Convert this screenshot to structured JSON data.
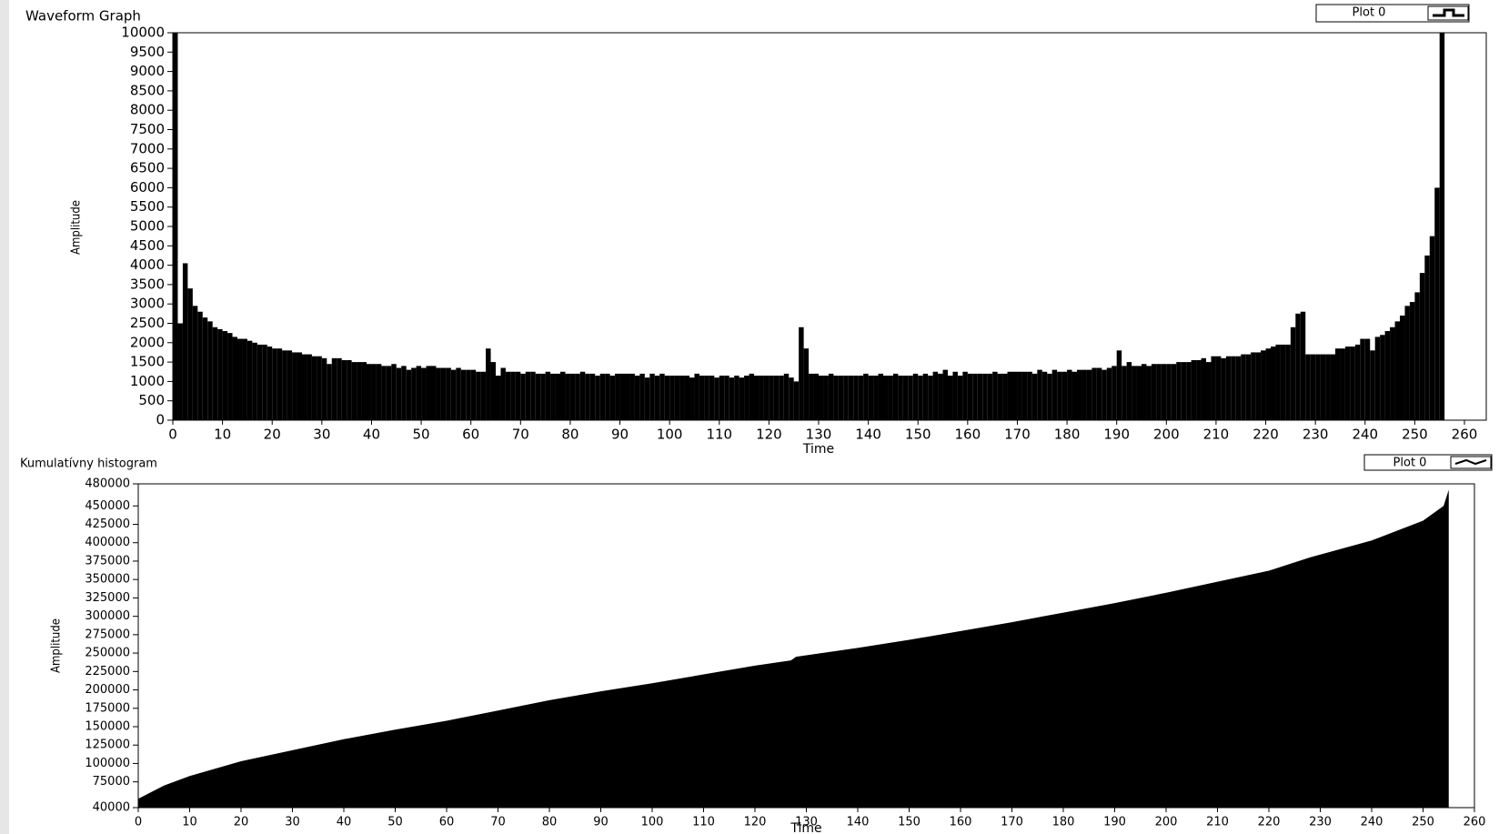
{
  "chart_data": [
    {
      "type": "bar",
      "title": "Waveform Graph",
      "x_label": "Time",
      "y_label": "Amplitude",
      "legend": "Plot 0",
      "color": "#000000",
      "x": [
        0,
        1,
        2,
        3,
        4,
        5,
        6,
        7,
        8,
        9,
        10,
        11,
        12,
        13,
        14,
        15,
        16,
        17,
        18,
        19,
        20,
        21,
        22,
        23,
        24,
        25,
        26,
        27,
        28,
        29,
        30,
        31,
        32,
        33,
        34,
        35,
        36,
        37,
        38,
        39,
        40,
        41,
        42,
        43,
        44,
        45,
        46,
        47,
        48,
        49,
        50,
        51,
        52,
        53,
        54,
        55,
        56,
        57,
        58,
        59,
        60,
        61,
        62,
        63,
        64,
        65,
        66,
        67,
        68,
        69,
        70,
        71,
        72,
        73,
        74,
        75,
        76,
        77,
        78,
        79,
        80,
        81,
        82,
        83,
        84,
        85,
        86,
        87,
        88,
        89,
        90,
        91,
        92,
        93,
        94,
        95,
        96,
        97,
        98,
        99,
        100,
        101,
        102,
        103,
        104,
        105,
        106,
        107,
        108,
        109,
        110,
        111,
        112,
        113,
        114,
        115,
        116,
        117,
        118,
        119,
        120,
        121,
        122,
        123,
        124,
        125,
        126,
        127,
        128,
        129,
        130,
        131,
        132,
        133,
        134,
        135,
        136,
        137,
        138,
        139,
        140,
        141,
        142,
        143,
        144,
        145,
        146,
        147,
        148,
        149,
        150,
        151,
        152,
        153,
        154,
        155,
        156,
        157,
        158,
        159,
        160,
        161,
        162,
        163,
        164,
        165,
        166,
        167,
        168,
        169,
        170,
        171,
        172,
        173,
        174,
        175,
        176,
        177,
        178,
        179,
        180,
        181,
        182,
        183,
        184,
        185,
        186,
        187,
        188,
        189,
        190,
        191,
        192,
        193,
        194,
        195,
        196,
        197,
        198,
        199,
        200,
        201,
        202,
        203,
        204,
        205,
        206,
        207,
        208,
        209,
        210,
        211,
        212,
        213,
        214,
        215,
        216,
        217,
        218,
        219,
        220,
        221,
        222,
        223,
        224,
        225,
        226,
        227,
        228,
        229,
        230,
        231,
        232,
        233,
        234,
        235,
        236,
        237,
        238,
        239,
        240,
        241,
        242,
        243,
        244,
        245,
        246,
        247,
        248,
        249,
        250,
        251,
        252,
        253,
        254,
        255
      ],
      "values": [
        10000,
        2500,
        4050,
        3400,
        2950,
        2800,
        2650,
        2550,
        2400,
        2350,
        2300,
        2250,
        2150,
        2100,
        2100,
        2050,
        2000,
        1950,
        1950,
        1900,
        1850,
        1850,
        1800,
        1800,
        1750,
        1750,
        1700,
        1700,
        1650,
        1650,
        1600,
        1450,
        1600,
        1600,
        1550,
        1550,
        1500,
        1500,
        1500,
        1450,
        1450,
        1450,
        1400,
        1400,
        1450,
        1350,
        1400,
        1300,
        1350,
        1400,
        1350,
        1400,
        1400,
        1350,
        1350,
        1350,
        1300,
        1350,
        1300,
        1300,
        1300,
        1250,
        1250,
        1850,
        1500,
        1150,
        1350,
        1250,
        1250,
        1250,
        1200,
        1250,
        1250,
        1200,
        1200,
        1250,
        1200,
        1200,
        1250,
        1200,
        1200,
        1200,
        1250,
        1200,
        1200,
        1150,
        1200,
        1200,
        1150,
        1200,
        1200,
        1200,
        1200,
        1150,
        1200,
        1100,
        1200,
        1150,
        1200,
        1150,
        1150,
        1150,
        1150,
        1150,
        1100,
        1200,
        1150,
        1150,
        1150,
        1100,
        1150,
        1150,
        1100,
        1150,
        1100,
        1150,
        1200,
        1150,
        1150,
        1150,
        1150,
        1150,
        1150,
        1200,
        1100,
        1000,
        2400,
        1850,
        1200,
        1200,
        1150,
        1150,
        1200,
        1150,
        1150,
        1150,
        1150,
        1150,
        1150,
        1200,
        1150,
        1150,
        1200,
        1150,
        1150,
        1200,
        1150,
        1150,
        1150,
        1200,
        1150,
        1200,
        1150,
        1250,
        1200,
        1300,
        1150,
        1250,
        1150,
        1250,
        1200,
        1200,
        1200,
        1200,
        1200,
        1250,
        1200,
        1200,
        1250,
        1250,
        1250,
        1250,
        1250,
        1200,
        1300,
        1250,
        1200,
        1300,
        1250,
        1250,
        1300,
        1250,
        1300,
        1300,
        1300,
        1350,
        1350,
        1300,
        1350,
        1400,
        1800,
        1400,
        1500,
        1400,
        1400,
        1450,
        1400,
        1450,
        1450,
        1450,
        1450,
        1450,
        1500,
        1500,
        1500,
        1550,
        1550,
        1600,
        1500,
        1650,
        1650,
        1600,
        1650,
        1650,
        1650,
        1700,
        1700,
        1750,
        1750,
        1800,
        1850,
        1900,
        1950,
        1950,
        1950,
        2400,
        2750,
        2800,
        1700,
        1700,
        1700,
        1700,
        1700,
        1700,
        1850,
        1850,
        1900,
        1900,
        1950,
        2100,
        2100,
        1800,
        2150,
        2200,
        2300,
        2400,
        2550,
        2700,
        2950,
        3050,
        3300,
        3800,
        4250,
        4750,
        6000,
        10000
      ],
      "xlim": [
        0,
        260
      ],
      "xticks": [
        0,
        10,
        20,
        30,
        40,
        50,
        60,
        70,
        80,
        90,
        100,
        110,
        120,
        130,
        140,
        150,
        160,
        170,
        180,
        190,
        200,
        210,
        220,
        230,
        240,
        250,
        260
      ],
      "ylim": [
        0,
        10000
      ],
      "yticks": [
        0,
        500,
        1000,
        1500,
        2000,
        2500,
        3000,
        3500,
        4000,
        4500,
        5000,
        5500,
        6000,
        6500,
        7000,
        7500,
        8000,
        8500,
        9000,
        9500,
        10000
      ]
    },
    {
      "type": "area",
      "title": "Kumulatívny histogram",
      "x_label": "Time",
      "y_label": "Amplitude",
      "legend": "Plot 0",
      "color": "#000000",
      "x": [
        0,
        5,
        10,
        20,
        30,
        40,
        50,
        60,
        70,
        80,
        90,
        100,
        110,
        120,
        127,
        128,
        140,
        150,
        160,
        170,
        180,
        190,
        200,
        210,
        220,
        228,
        240,
        250,
        254,
        255
      ],
      "values": [
        52000,
        70000,
        83000,
        103000,
        118000,
        133000,
        146000,
        158000,
        172000,
        186000,
        198000,
        209000,
        221000,
        233000,
        240000,
        245000,
        257000,
        268000,
        280000,
        292000,
        305000,
        318000,
        332000,
        347000,
        362000,
        380000,
        403000,
        430000,
        450000,
        472000
      ],
      "xlim": [
        0,
        260
      ],
      "xticks": [
        0,
        10,
        20,
        30,
        40,
        50,
        60,
        70,
        80,
        90,
        100,
        110,
        120,
        130,
        140,
        150,
        160,
        170,
        180,
        190,
        200,
        210,
        220,
        230,
        240,
        250,
        260
      ],
      "ylim": [
        40000,
        480000
      ],
      "yticks": [
        40000,
        75000,
        100000,
        125000,
        150000,
        175000,
        200000,
        225000,
        250000,
        275000,
        300000,
        325000,
        350000,
        375000,
        400000,
        425000,
        450000,
        480000
      ]
    }
  ]
}
